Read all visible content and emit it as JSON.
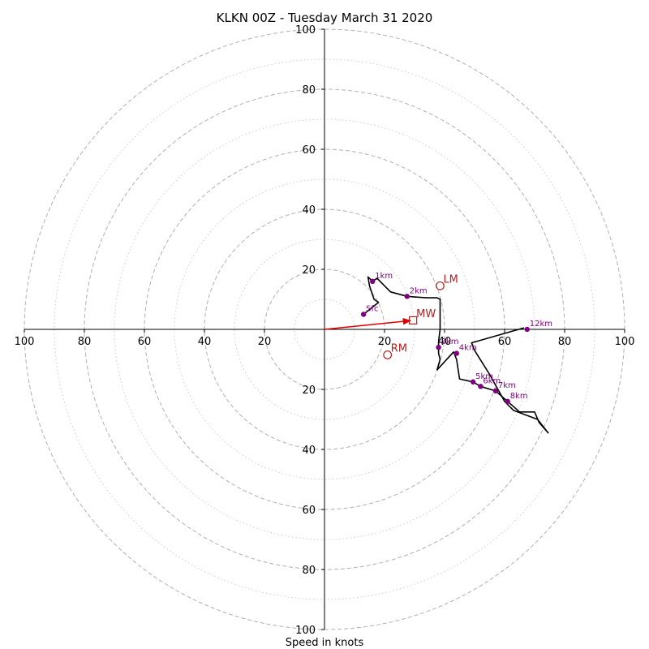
{
  "chart_data": {
    "type": "hodograph",
    "title": "KLKN 00Z - Tuesday March 31 2020",
    "xlabel": "Speed in knots",
    "axis_range": [
      -100,
      100
    ],
    "major_rings": [
      20,
      40,
      60,
      80,
      100
    ],
    "minor_rings": [
      10,
      30,
      50,
      70,
      90
    ],
    "ticks": {
      "x": [
        {
          "value": -100,
          "label": "100"
        },
        {
          "value": -80,
          "label": "80"
        },
        {
          "value": -60,
          "label": "60"
        },
        {
          "value": -40,
          "label": "40"
        },
        {
          "value": -20,
          "label": "20"
        },
        {
          "value": 20,
          "label": "20"
        },
        {
          "value": 40,
          "label": "40"
        },
        {
          "value": 60,
          "label": "60"
        },
        {
          "value": 80,
          "label": "80"
        },
        {
          "value": 100,
          "label": "100"
        }
      ],
      "y": [
        {
          "value": 100,
          "label": "100"
        },
        {
          "value": 80,
          "label": "80"
        },
        {
          "value": 60,
          "label": "60"
        },
        {
          "value": 40,
          "label": "40"
        },
        {
          "value": 20,
          "label": "20"
        },
        {
          "value": -20,
          "label": "20"
        },
        {
          "value": -40,
          "label": "40"
        },
        {
          "value": -60,
          "label": "60"
        },
        {
          "value": -80,
          "label": "80"
        },
        {
          "value": -100,
          "label": "100"
        }
      ]
    },
    "hodograph_trace": [
      [
        13,
        5
      ],
      [
        18,
        9
      ],
      [
        16.5,
        10
      ],
      [
        15,
        14.5
      ],
      [
        14.5,
        17.5
      ],
      [
        16,
        16
      ],
      [
        17.5,
        17
      ],
      [
        22,
        12.5
      ],
      [
        27.5,
        11
      ],
      [
        34,
        10.5
      ],
      [
        37.5,
        10.5
      ],
      [
        38.5,
        10
      ],
      [
        38.5,
        7
      ],
      [
        38.5,
        3
      ],
      [
        38.5,
        0
      ],
      [
        38,
        -4
      ],
      [
        38,
        -6
      ],
      [
        38,
        -8
      ],
      [
        38.5,
        -10
      ],
      [
        37.5,
        -13.5
      ],
      [
        43,
        -7.5
      ],
      [
        44,
        -10
      ],
      [
        45,
        -16.5
      ],
      [
        49.5,
        -17.5
      ],
      [
        52,
        -19
      ],
      [
        57,
        -20.5
      ],
      [
        61,
        -24
      ],
      [
        65,
        -27.5
      ],
      [
        70,
        -27.5
      ],
      [
        71.5,
        -31
      ],
      [
        74.5,
        -34.5
      ],
      [
        71,
        -30
      ],
      [
        63,
        -27
      ],
      [
        60,
        -24
      ],
      [
        55,
        -15
      ],
      [
        50,
        -7
      ],
      [
        49,
        -4.5
      ],
      [
        66.5,
        0.5
      ]
    ],
    "height_markers": [
      {
        "label": "Sfc",
        "u": 13,
        "v": 5
      },
      {
        "label": "1km",
        "u": 16,
        "v": 16
      },
      {
        "label": "2km",
        "u": 27.5,
        "v": 11
      },
      {
        "label": "3km",
        "u": 38,
        "v": -6
      },
      {
        "label": "4km",
        "u": 44,
        "v": -8
      },
      {
        "label": "5km",
        "u": 49.5,
        "v": -17.5
      },
      {
        "label": "6km",
        "u": 52,
        "v": -19
      },
      {
        "label": "7km",
        "u": 57,
        "v": -20.5
      },
      {
        "label": "8km",
        "u": 61,
        "v": -24
      },
      {
        "label": "12km",
        "u": 67.5,
        "v": 0
      }
    ],
    "storm_motion": [
      {
        "label": "LM",
        "u": 38.5,
        "v": 14.5,
        "marker": "circle"
      },
      {
        "label": "RM",
        "u": 21,
        "v": -8.5,
        "marker": "circle"
      },
      {
        "label": "MW",
        "u": 29.5,
        "v": 3,
        "marker": "square"
      }
    ],
    "mean_wind_vector": {
      "u": 29.5,
      "v": 3
    },
    "colors": {
      "trace": "#000000",
      "height_marker": "#800080",
      "storm_motion": "#b22222",
      "mean_wind_arrow": "#e00000",
      "major_ring": "#b0b0b0",
      "minor_ring": "#cccccc",
      "axes": "#000000"
    }
  }
}
